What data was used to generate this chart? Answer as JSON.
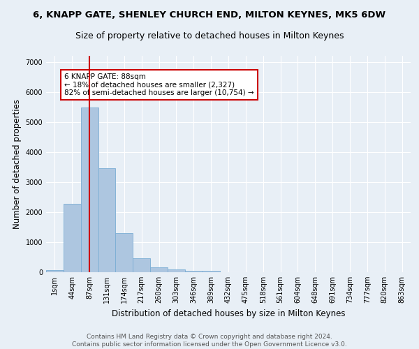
{
  "title": "6, KNAPP GATE, SHENLEY CHURCH END, MILTON KEYNES, MK5 6DW",
  "subtitle": "Size of property relative to detached houses in Milton Keynes",
  "xlabel": "Distribution of detached houses by size in Milton Keynes",
  "ylabel": "Number of detached properties",
  "footer_line1": "Contains HM Land Registry data © Crown copyright and database right 2024.",
  "footer_line2": "Contains public sector information licensed under the Open Government Licence v3.0.",
  "categories": [
    "1sqm",
    "44sqm",
    "87sqm",
    "131sqm",
    "174sqm",
    "217sqm",
    "260sqm",
    "303sqm",
    "346sqm",
    "389sqm",
    "432sqm",
    "475sqm",
    "518sqm",
    "561sqm",
    "604sqm",
    "648sqm",
    "691sqm",
    "734sqm",
    "777sqm",
    "820sqm",
    "863sqm"
  ],
  "values": [
    80,
    2280,
    5480,
    3450,
    1310,
    470,
    165,
    90,
    55,
    35,
    0,
    0,
    0,
    0,
    0,
    0,
    0,
    0,
    0,
    0,
    0
  ],
  "bar_color": "#adc6e0",
  "bar_edge_color": "#7aadd4",
  "vline_x": 2,
  "vline_color": "#cc0000",
  "annotation_text": "6 KNAPP GATE: 88sqm\n← 18% of detached houses are smaller (2,327)\n82% of semi-detached houses are larger (10,754) →",
  "annotation_box_color": "#ffffff",
  "annotation_box_edge": "#cc0000",
  "ylim": [
    0,
    7200
  ],
  "yticks": [
    0,
    1000,
    2000,
    3000,
    4000,
    5000,
    6000,
    7000
  ],
  "bg_color": "#e8eff6",
  "grid_color": "#ffffff",
  "title_fontsize": 9.5,
  "subtitle_fontsize": 9,
  "axis_label_fontsize": 8.5,
  "tick_fontsize": 7,
  "footer_fontsize": 6.5,
  "annot_fontsize": 7.5
}
